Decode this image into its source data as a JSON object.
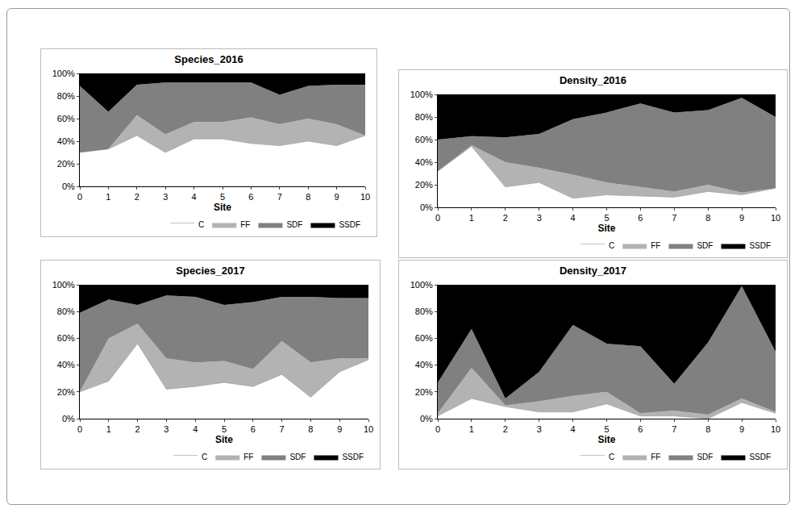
{
  "chart_data": [
    {
      "type": "area",
      "title": "Species_2016",
      "xlabel": "Site",
      "stacked": true,
      "grid": false,
      "legend": "lower right",
      "x": [
        0,
        1,
        2,
        3,
        4,
        5,
        6,
        7,
        8,
        9,
        10
      ],
      "xlim": [
        0,
        10
      ],
      "xticks": [
        0,
        1,
        2,
        3,
        4,
        5,
        6,
        7,
        8,
        9,
        10
      ],
      "ylim": [
        0,
        100
      ],
      "yticks": [
        {
          "value": 0,
          "label": "0%"
        },
        {
          "value": 20,
          "label": "20%"
        },
        {
          "value": 40,
          "label": "40%"
        },
        {
          "value": 60,
          "label": "60%"
        },
        {
          "value": 80,
          "label": "80%"
        },
        {
          "value": 100,
          "label": "100%"
        }
      ],
      "series": [
        {
          "name": "C",
          "color": "#ffffff",
          "values": [
            30,
            33,
            45,
            30,
            42,
            42,
            38,
            36,
            40,
            36,
            45
          ]
        },
        {
          "name": "FF",
          "color": "#b3b3b3",
          "values": [
            0,
            0,
            18,
            16,
            15,
            15,
            23,
            19,
            20,
            19,
            0
          ]
        },
        {
          "name": "SDF",
          "color": "#808080",
          "values": [
            59,
            33,
            27,
            46,
            35,
            35,
            31,
            26,
            29,
            35,
            45
          ]
        },
        {
          "name": "SSDF",
          "color": "#000000",
          "values": [
            11,
            34,
            10,
            8,
            8,
            8,
            8,
            19,
            11,
            10,
            10
          ]
        }
      ]
    },
    {
      "type": "area",
      "title": "Density_2016",
      "xlabel": "Site",
      "stacked": true,
      "grid": false,
      "legend": "lower right",
      "x": [
        0,
        1,
        2,
        3,
        4,
        5,
        6,
        7,
        8,
        9,
        10
      ],
      "xlim": [
        0,
        10
      ],
      "xticks": [
        0,
        1,
        2,
        3,
        4,
        5,
        6,
        7,
        8,
        9,
        10
      ],
      "ylim": [
        0,
        100
      ],
      "yticks": [
        {
          "value": 0,
          "label": "0%"
        },
        {
          "value": 20,
          "label": "20%"
        },
        {
          "value": 40,
          "label": "40%"
        },
        {
          "value": 60,
          "label": "60%"
        },
        {
          "value": 80,
          "label": "80%"
        },
        {
          "value": 100,
          "label": "100%"
        }
      ],
      "series": [
        {
          "name": "C",
          "color": "#ffffff",
          "values": [
            32,
            54,
            18,
            22,
            8,
            11,
            10,
            9,
            14,
            11,
            17
          ]
        },
        {
          "name": "FF",
          "color": "#b3b3b3",
          "values": [
            0,
            1,
            22,
            13,
            21,
            11,
            8,
            5,
            6,
            2,
            0
          ]
        },
        {
          "name": "SDF",
          "color": "#808080",
          "values": [
            28,
            8,
            22,
            30,
            49,
            62,
            74,
            70,
            66,
            84,
            63
          ]
        },
        {
          "name": "SSDF",
          "color": "#000000",
          "values": [
            40,
            37,
            38,
            35,
            22,
            16,
            8,
            16,
            14,
            3,
            20
          ]
        }
      ]
    },
    {
      "type": "area",
      "title": "Species_2017",
      "xlabel": "Site",
      "stacked": true,
      "grid": false,
      "legend": "lower right",
      "x": [
        0,
        1,
        2,
        3,
        4,
        5,
        6,
        7,
        8,
        9,
        10
      ],
      "xlim": [
        0,
        10
      ],
      "xticks": [
        0,
        1,
        2,
        3,
        4,
        5,
        6,
        7,
        8,
        9,
        10
      ],
      "ylim": [
        0,
        100
      ],
      "yticks": [
        {
          "value": 0,
          "label": "0%"
        },
        {
          "value": 20,
          "label": "20%"
        },
        {
          "value": 40,
          "label": "40%"
        },
        {
          "value": 60,
          "label": "60%"
        },
        {
          "value": 80,
          "label": "80%"
        },
        {
          "value": 100,
          "label": "100%"
        }
      ],
      "series": [
        {
          "name": "C",
          "color": "#ffffff",
          "values": [
            20,
            28,
            56,
            22,
            24,
            27,
            24,
            33,
            16,
            35,
            44
          ]
        },
        {
          "name": "FF",
          "color": "#b3b3b3",
          "values": [
            0,
            32,
            15,
            23,
            18,
            16,
            13,
            25,
            26,
            10,
            1
          ]
        },
        {
          "name": "SDF",
          "color": "#808080",
          "values": [
            59,
            29,
            14,
            47,
            49,
            42,
            50,
            33,
            49,
            45,
            45
          ]
        },
        {
          "name": "SSDF",
          "color": "#000000",
          "values": [
            21,
            11,
            15,
            8,
            9,
            15,
            13,
            9,
            9,
            10,
            10
          ]
        }
      ]
    },
    {
      "type": "area",
      "title": "Density_2017",
      "xlabel": "Site",
      "stacked": true,
      "grid": false,
      "legend": "lower right",
      "x": [
        0,
        1,
        2,
        3,
        4,
        5,
        6,
        7,
        8,
        9,
        10
      ],
      "xlim": [
        0,
        10
      ],
      "xticks": [
        0,
        1,
        2,
        3,
        4,
        5,
        6,
        7,
        8,
        9,
        10
      ],
      "ylim": [
        0,
        100
      ],
      "yticks": [
        {
          "value": 0,
          "label": "0%"
        },
        {
          "value": 20,
          "label": "20%"
        },
        {
          "value": 40,
          "label": "40%"
        },
        {
          "value": 60,
          "label": "60%"
        },
        {
          "value": 80,
          "label": "80%"
        },
        {
          "value": 100,
          "label": "100%"
        }
      ],
      "series": [
        {
          "name": "C",
          "color": "#ffffff",
          "values": [
            2,
            15,
            9,
            5,
            5,
            11,
            2,
            2,
            0,
            12,
            4
          ]
        },
        {
          "name": "FF",
          "color": "#b3b3b3",
          "values": [
            2,
            23,
            1,
            8,
            12,
            9,
            2,
            4,
            3,
            3,
            1
          ]
        },
        {
          "name": "SDF",
          "color": "#808080",
          "values": [
            23,
            29,
            5,
            22,
            53,
            36,
            50,
            20,
            54,
            84,
            45
          ]
        },
        {
          "name": "SSDF",
          "color": "#000000",
          "values": [
            73,
            33,
            85,
            65,
            30,
            44,
            46,
            74,
            43,
            1,
            50
          ]
        }
      ]
    }
  ]
}
